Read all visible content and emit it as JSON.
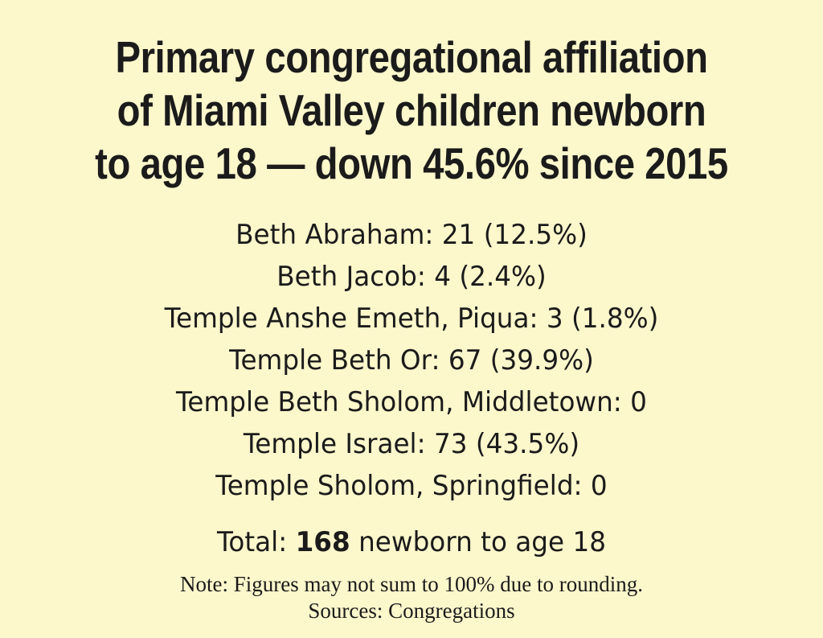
{
  "title_lines": [
    "Primary congregational affiliation",
    "of Miami Valley children newborn",
    "to age 18 — down 45.6% since 2015"
  ],
  "entries": [
    "Beth Abraham: 21 (12.5%)",
    "Beth Jacob: 4 (2.4%)",
    "Temple Anshe Emeth, Piqua: 3 (1.8%)",
    "Temple Beth Or: 67 (39.9%)",
    "Temple Beth Sholom, Middletown: 0",
    "Temple Israel: 73 (43.5%)",
    "Temple Sholom, Springfield: 0"
  ],
  "total": {
    "prefix": "Total: ",
    "value": "168",
    "suffix": " newborn to age 18"
  },
  "note": "Note: Figures may not sum to 100% due to rounding.",
  "sources": "Sources: Congregations",
  "colors": {
    "background": "#fdf7cc",
    "text": "#1b1b1b"
  }
}
